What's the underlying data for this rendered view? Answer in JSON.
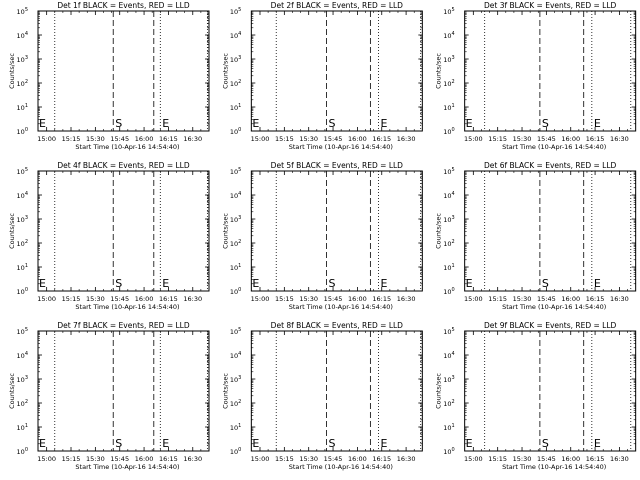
{
  "chart_data": [
    {
      "type": "line",
      "title": "Det 1f BLACK = Events, RED = LLD",
      "xlabel": "Start Time (10-Apr-16 14:54:40)",
      "ylabel": "Counts/sec",
      "x_ticklabels": [
        "15:00",
        "15:15",
        "15:30",
        "15:45",
        "16:00",
        "16:15",
        "16:30"
      ],
      "y_ticklabels": [
        "10^0",
        "10^1",
        "10^2",
        "10^3",
        "10^4",
        "10^5"
      ],
      "y_scale": "log",
      "ylim": [
        1,
        100000
      ],
      "series": [],
      "vlines": [
        {
          "time": "15:05",
          "style": "dotted"
        },
        {
          "time": "15:41",
          "style": "dashed",
          "label": "S"
        },
        {
          "time": "16:06",
          "style": "dashed"
        },
        {
          "time": "16:10",
          "style": "dotted",
          "label": "E"
        },
        {
          "time": "16:39",
          "style": "dotted"
        }
      ],
      "edge_label": "E"
    },
    {
      "type": "line",
      "title": "Det 2f BLACK = Events, RED = LLD",
      "xlabel": "Start Time (10-Apr-16 14:54:40)",
      "ylabel": "Counts/sec",
      "x_ticklabels": [
        "15:00",
        "15:15",
        "15:30",
        "15:45",
        "16:00",
        "16:15",
        "16:30"
      ],
      "y_ticklabels": [
        "10^0",
        "10^1",
        "10^2",
        "10^3",
        "10^4",
        "10^5"
      ],
      "y_scale": "log",
      "ylim": [
        1,
        100000
      ],
      "series": [],
      "vlines": [
        {
          "time": "15:10",
          "style": "dotted"
        },
        {
          "time": "15:41",
          "style": "dashed",
          "label": "S"
        },
        {
          "time": "16:08",
          "style": "dashed"
        },
        {
          "time": "16:13",
          "style": "dotted",
          "label": "E"
        },
        {
          "time": "16:39",
          "style": "dotted"
        }
      ],
      "edge_label": "E"
    },
    {
      "type": "line",
      "title": "Det 3f BLACK = Events, RED = LLD",
      "xlabel": "Start Time (10-Apr-16 14:54:40)",
      "ylabel": "Counts/sec",
      "x_ticklabels": [
        "15:00",
        "15:15",
        "15:30",
        "15:45",
        "16:00",
        "16:15",
        "16:30"
      ],
      "y_ticklabels": [
        "10^0",
        "10^1",
        "10^2",
        "10^3",
        "10^4",
        "10^5"
      ],
      "y_scale": "log",
      "ylim": [
        1,
        100000
      ],
      "series": [],
      "vlines": [
        {
          "time": "15:07",
          "style": "dotted"
        },
        {
          "time": "15:41",
          "style": "dashed",
          "label": "S"
        },
        {
          "time": "16:08",
          "style": "dashed"
        },
        {
          "time": "16:13",
          "style": "dotted",
          "label": "E"
        },
        {
          "time": "16:37",
          "style": "dotted"
        }
      ],
      "edge_label": "E"
    },
    {
      "type": "line",
      "title": "Det 4f BLACK = Events, RED = LLD",
      "xlabel": "Start Time (10-Apr-16 14:54:40)",
      "ylabel": "Counts/sec",
      "x_ticklabels": [
        "15:00",
        "15:15",
        "15:30",
        "15:45",
        "16:00",
        "16:15",
        "16:30"
      ],
      "y_ticklabels": [
        "10^0",
        "10^1",
        "10^2",
        "10^3",
        "10^4",
        "10^5"
      ],
      "y_scale": "log",
      "ylim": [
        1,
        100000
      ],
      "series": [],
      "vlines": [
        {
          "time": "15:05",
          "style": "dotted"
        },
        {
          "time": "15:41",
          "style": "dashed",
          "label": "S"
        },
        {
          "time": "16:06",
          "style": "dashed"
        },
        {
          "time": "16:10",
          "style": "dotted",
          "label": "E"
        },
        {
          "time": "16:39",
          "style": "dotted"
        }
      ],
      "edge_label": "E"
    },
    {
      "type": "line",
      "title": "Det 5f BLACK = Events, RED = LLD",
      "xlabel": "Start Time (10-Apr-16 14:54:40)",
      "ylabel": "Counts/sec",
      "x_ticklabels": [
        "15:00",
        "15:15",
        "15:30",
        "15:45",
        "16:00",
        "16:15",
        "16:30"
      ],
      "y_ticklabels": [
        "10^0",
        "10^1",
        "10^2",
        "10^3",
        "10^4",
        "10^5"
      ],
      "y_scale": "log",
      "ylim": [
        1,
        100000
      ],
      "series": [],
      "vlines": [
        {
          "time": "15:10",
          "style": "dotted"
        },
        {
          "time": "15:41",
          "style": "dashed",
          "label": "S"
        },
        {
          "time": "16:08",
          "style": "dashed"
        },
        {
          "time": "16:13",
          "style": "dotted",
          "label": "E"
        },
        {
          "time": "16:39",
          "style": "dotted"
        }
      ],
      "edge_label": "E"
    },
    {
      "type": "line",
      "title": "Det 6f BLACK = Events, RED = LLD",
      "xlabel": "Start Time (10-Apr-16 14:54:40)",
      "ylabel": "Counts/sec",
      "x_ticklabels": [
        "15:00",
        "15:15",
        "15:30",
        "15:45",
        "16:00",
        "16:15",
        "16:30"
      ],
      "y_ticklabels": [
        "10^0",
        "10^1",
        "10^2",
        "10^3",
        "10^4",
        "10^5"
      ],
      "y_scale": "log",
      "ylim": [
        1,
        100000
      ],
      "series": [],
      "vlines": [
        {
          "time": "15:07",
          "style": "dotted"
        },
        {
          "time": "15:41",
          "style": "dashed",
          "label": "S"
        },
        {
          "time": "16:08",
          "style": "dashed"
        },
        {
          "time": "16:13",
          "style": "dotted",
          "label": "E"
        },
        {
          "time": "16:37",
          "style": "dotted"
        }
      ],
      "edge_label": "E"
    },
    {
      "type": "line",
      "title": "Det 7f BLACK = Events, RED = LLD",
      "xlabel": "Start Time (10-Apr-16 14:54:40)",
      "ylabel": "Counts/sec",
      "x_ticklabels": [
        "15:00",
        "15:15",
        "15:30",
        "15:45",
        "16:00",
        "16:15",
        "16:30"
      ],
      "y_ticklabels": [
        "10^0",
        "10^1",
        "10^2",
        "10^3",
        "10^4",
        "10^5"
      ],
      "y_scale": "log",
      "ylim": [
        1,
        100000
      ],
      "series": [],
      "vlines": [
        {
          "time": "15:05",
          "style": "dotted"
        },
        {
          "time": "15:41",
          "style": "dashed",
          "label": "S"
        },
        {
          "time": "16:06",
          "style": "dashed"
        },
        {
          "time": "16:10",
          "style": "dotted",
          "label": "E"
        },
        {
          "time": "16:39",
          "style": "dotted"
        }
      ],
      "edge_label": "E"
    },
    {
      "type": "line",
      "title": "Det 8f BLACK = Events, RED = LLD",
      "xlabel": "Start Time (10-Apr-16 14:54:40)",
      "ylabel": "Counts/sec",
      "x_ticklabels": [
        "15:00",
        "15:15",
        "15:30",
        "15:45",
        "16:00",
        "16:15",
        "16:30"
      ],
      "y_ticklabels": [
        "10^0",
        "10^1",
        "10^2",
        "10^3",
        "10^4",
        "10^5"
      ],
      "y_scale": "log",
      "ylim": [
        1,
        100000
      ],
      "series": [],
      "vlines": [
        {
          "time": "15:10",
          "style": "dotted"
        },
        {
          "time": "15:41",
          "style": "dashed",
          "label": "S"
        },
        {
          "time": "16:08",
          "style": "dashed"
        },
        {
          "time": "16:13",
          "style": "dotted",
          "label": "E"
        },
        {
          "time": "16:39",
          "style": "dotted"
        }
      ],
      "edge_label": "E"
    },
    {
      "type": "line",
      "title": "Det 9f BLACK = Events, RED = LLD",
      "xlabel": "Start Time (10-Apr-16 14:54:40)",
      "ylabel": "Counts/sec",
      "x_ticklabels": [
        "15:00",
        "15:15",
        "15:30",
        "15:45",
        "16:00",
        "16:15",
        "16:30"
      ],
      "y_ticklabels": [
        "10^0",
        "10^1",
        "10^2",
        "10^3",
        "10^4",
        "10^5"
      ],
      "y_scale": "log",
      "ylim": [
        1,
        100000
      ],
      "series": [],
      "vlines": [
        {
          "time": "15:07",
          "style": "dotted"
        },
        {
          "time": "15:41",
          "style": "dashed",
          "label": "S"
        },
        {
          "time": "16:08",
          "style": "dashed"
        },
        {
          "time": "16:13",
          "style": "dotted",
          "label": "E"
        },
        {
          "time": "16:37",
          "style": "dotted"
        }
      ],
      "edge_label": "E"
    }
  ]
}
